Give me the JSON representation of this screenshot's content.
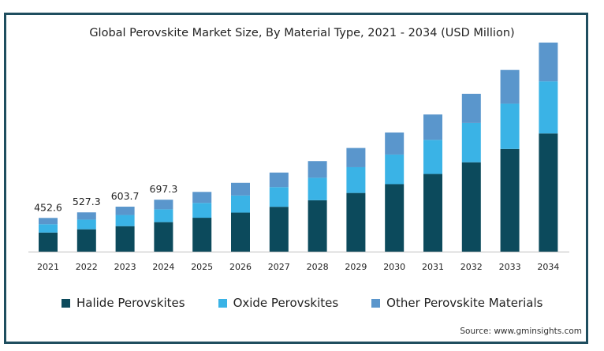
{
  "chart_data": {
    "type": "bar",
    "stacked": true,
    "title": "Global Perovskite Market Size, By Material Type, 2021 - 2034 (USD Million)",
    "source": "Source: www.gminsights.com",
    "categories": [
      "2021",
      "2022",
      "2023",
      "2024",
      "2025",
      "2026",
      "2027",
      "2028",
      "2029",
      "2030",
      "2031",
      "2032",
      "2033",
      "2034"
    ],
    "totals_labels": [
      "452.6",
      "527.3",
      "603.7",
      "697.3",
      "",
      "",
      "",
      "",
      "",
      "",
      "",
      "",
      "",
      ""
    ],
    "series": [
      {
        "name": "Halide Perovskites",
        "color": "#0c4a5c",
        "values": [
          256,
          300,
          342,
          396,
          455,
          524,
          602,
          690,
          788,
          906,
          1043,
          1200,
          1379,
          1587
        ]
      },
      {
        "name": "Oxide Perovskites",
        "color": "#3ab3e6",
        "values": [
          112,
          130,
          150,
          172,
          199,
          230,
          264,
          302,
          346,
          398,
          458,
          528,
          608,
          700
        ]
      },
      {
        "name": "Other Perovskite Materials",
        "color": "#5a96cc",
        "values": [
          84.6,
          97.3,
          111.7,
          129.3,
          148,
          170,
          196,
          224,
          258,
          296,
          341,
          392,
          453,
          521
        ]
      }
    ],
    "ylim": [
      0,
      2850
    ],
    "grid": false,
    "legend_position": "bottom-left"
  }
}
